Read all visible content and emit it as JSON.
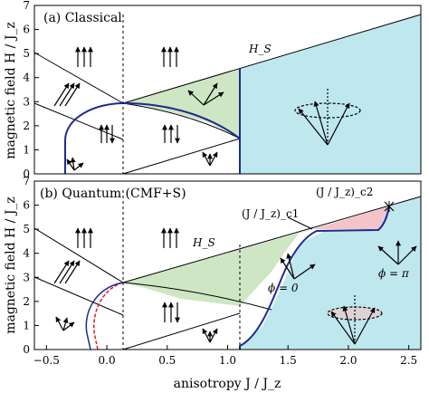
{
  "chart_data": [
    {
      "type": "line",
      "panel_label": "(a) Classical",
      "xlim": [
        -0.6,
        2.6
      ],
      "ylim": [
        0,
        7
      ],
      "xlabel": "",
      "ylabel": "magnetic field H / J_z",
      "x_ticks": [],
      "y_ticks": [
        "0",
        "1",
        "2",
        "3",
        "4",
        "5",
        "6",
        "7"
      ],
      "annotations": [
        "H_S"
      ],
      "region_colors": {
        "green": "#cfe6c4",
        "cyan": "#bfe7ee"
      },
      "series": [
        {
          "x": [
            -0.6,
            0.0
          ],
          "y": [
            5.2,
            3.0
          ]
        },
        {
          "x": [
            0.0,
            2.6
          ],
          "y": [
            3.0,
            7.2
          ]
        },
        {
          "x": [
            -0.6,
            0.0
          ],
          "y": [
            3.0,
            1.5
          ]
        },
        {
          "x": [
            0.0,
            1.0
          ],
          "y": [
            0.0,
            1.5
          ]
        },
        {
          "x": [
            -0.35,
            -0.35,
            -0.3,
            -0.2,
            -0.1,
            0.0,
            0.3,
            0.6,
            0.9,
            1.0
          ],
          "y": [
            0.0,
            1.3,
            2.0,
            2.6,
            2.9,
            3.0,
            2.85,
            2.55,
            2.0,
            1.5
          ]
        },
        {
          "x": [
            0.0,
            0.3,
            0.6,
            1.0
          ],
          "y": [
            3.0,
            3.4,
            3.9,
            4.5
          ]
        },
        {
          "x": [
            0.0,
            0.4,
            0.8,
            1.0
          ],
          "y": [
            3.0,
            2.7,
            2.1,
            1.5
          ]
        },
        {
          "x": [
            1.0,
            1.0
          ],
          "y": [
            0.0,
            4.5
          ]
        }
      ]
    },
    {
      "type": "line",
      "panel_label": "(b) Quantum (CMF+S)",
      "xlim": [
        -0.6,
        2.6
      ],
      "ylim": [
        0,
        7
      ],
      "xlabel": "anisotropy J / J_z",
      "ylabel": "magnetic field H / J_z",
      "x_ticks": [
        "−0.5",
        "0.0",
        "0.5",
        "1.0",
        "1.5",
        "2.0",
        "2.5"
      ],
      "y_ticks": [
        "0",
        "1",
        "2",
        "3",
        "4",
        "5",
        "6",
        "7"
      ],
      "annotations": [
        "H_S",
        "(J / J_z)_c1",
        "(J / J_z)_c2",
        "ϕ = 0",
        "ϕ = π"
      ],
      "region_colors": {
        "green": "#cfe6c4",
        "pink": "#f4c4c8",
        "cyan": "#bfe7ee"
      },
      "series": [
        {
          "x": [
            -0.6,
            0.0
          ],
          "y": [
            5.2,
            3.0
          ]
        },
        {
          "x": [
            0.0,
            2.55
          ],
          "y": [
            3.0,
            6.6
          ]
        },
        {
          "x": [
            -0.6,
            0.0
          ],
          "y": [
            3.0,
            1.5
          ]
        },
        {
          "x": [
            0.0,
            1.0
          ],
          "y": [
            0.0,
            1.5
          ]
        },
        {
          "x": [
            0.0,
            0.9,
            1.6,
            2.2,
            2.3
          ],
          "y": [
            3.0,
            4.2,
            5.4,
            5.6,
            6.2
          ]
        },
        {
          "x": [
            0.0,
            0.5,
            1.0
          ],
          "y": [
            3.0,
            2.4,
            1.9
          ]
        },
        {
          "x": [
            1.0,
            1.0,
            1.2,
            1.4,
            1.6,
            2.0,
            2.2,
            2.3
          ],
          "y": [
            0.0,
            1.5,
            2.5,
            3.5,
            4.5,
            5.5,
            5.6,
            6.2
          ]
        }
      ]
    }
  ]
}
